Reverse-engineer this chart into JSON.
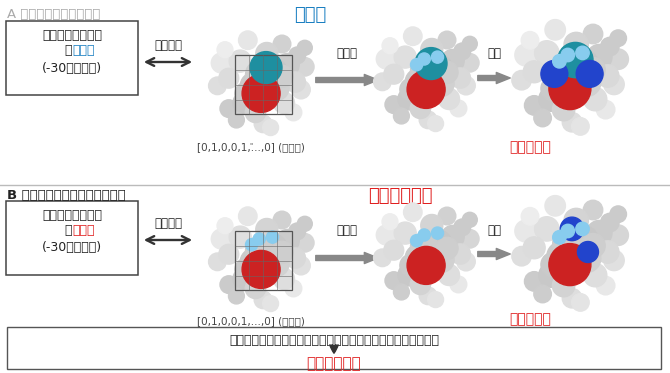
{
  "bg_color": "#ffffff",
  "section_A_label": "A 従来（実験値を利用）",
  "section_A_label_color": "#aaaaaa",
  "section_B_label": "B 今回の成果（計算値の利用）",
  "section_B_label_color": "#222222",
  "title_A": "中間体",
  "title_A_color": "#1a7fc1",
  "title_B": "遷移状態構造",
  "title_B_color": "#e02020",
  "box_A_line1": "エナンチオ選択性",
  "box_A_line2a": "の",
  "box_A_line2b": "実験値",
  "box_A_line2b_color": "#1a7fc1",
  "box_A_line3": "(-30サンプル)",
  "box_B_line1": "エナンチオ選択性",
  "box_B_line2a": "の",
  "box_B_line2b": "計算値",
  "box_B_line2b_color": "#e02020",
  "box_B_line3": "(-30サンプル)",
  "ml_label": "機械学習",
  "vis_label": "可視化",
  "des_label": "設計",
  "mol_field_label": "[0,1,0,0,1,...,0] (分子場)",
  "selectivity_label": "選択性向上",
  "selectivity_color": "#e02020",
  "bottom_text": "水色の点（可視化した重要構造情報）に重なるように分子設計",
  "bottom_final": "選択性向上！",
  "bottom_final_color": "#e02020",
  "divider_color": "#bbbbbb",
  "box_border_color": "#444444",
  "figure_width": 6.7,
  "figure_height": 3.73
}
